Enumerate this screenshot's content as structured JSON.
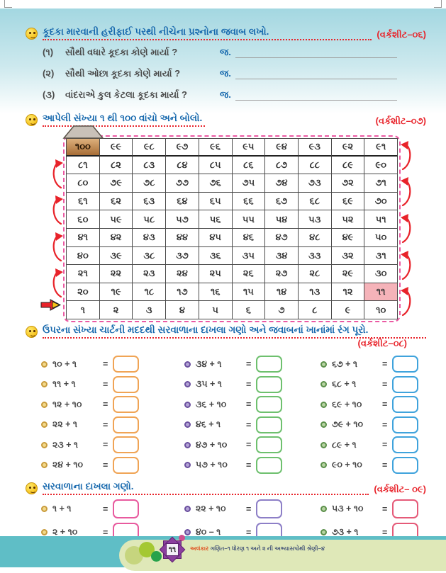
{
  "worksheet6": {
    "heading": "કૂદકા મારવાની હરીફાઈ પરથી નીચેના પ્રશ્નોના જવાબ લખો.",
    "label": "(વર્કશીટ–૦૬)",
    "answer_prefix": "જ.",
    "questions": [
      {
        "num": "(૧)",
        "text": "સૌથી વધારે કૂદકા કોણે માર્યા ?"
      },
      {
        "num": "(૨)",
        "text": "સૌથી ઓછા કૂદકા કોણે માર્યા ?"
      },
      {
        "num": "(૩)",
        "text": "વાંદરાએ કુલ કેટલા કૂદકા માર્યા ?"
      }
    ]
  },
  "worksheet7": {
    "heading": "આપેલી સંખ્યા ૧ થી ૧૦૦ વાંચો અને બોલો.",
    "label": "(વર્કશીટ–૦૭)",
    "start_cell": "૧૦૦",
    "highlight_cell": "૧૧",
    "grid_rows": [
      [
        "૧૦૦",
        "૯૯",
        "૯૮",
        "૯૭",
        "૯૬",
        "૯૫",
        "૯૪",
        "૯૩",
        "૯૨",
        "૯૧"
      ],
      [
        "૮૧",
        "૮૨",
        "૮૩",
        "૮૪",
        "૮૫",
        "૮૬",
        "૮૭",
        "૮૮",
        "૮૯",
        "૯૦"
      ],
      [
        "૮૦",
        "૭૯",
        "૭૮",
        "૭૭",
        "૭૬",
        "૭૫",
        "૭૪",
        "૭૩",
        "૭૨",
        "૭૧"
      ],
      [
        "૬૧",
        "૬૨",
        "૬૩",
        "૬૪",
        "૬૫",
        "૬૬",
        "૬૭",
        "૬૮",
        "૬૯",
        "૭૦"
      ],
      [
        "૬૦",
        "૫૯",
        "૫૮",
        "૫૭",
        "૫૬",
        "૫૫",
        "૫૪",
        "૫૩",
        "૫૨",
        "૫૧"
      ],
      [
        "૪૧",
        "૪૨",
        "૪૩",
        "૪૪",
        "૪૫",
        "૪૬",
        "૪૭",
        "૪૮",
        "૪૯",
        "૫૦"
      ],
      [
        "૪૦",
        "૩૯",
        "૩૮",
        "૩૭",
        "૩૬",
        "૩૫",
        "૩૪",
        "૩૩",
        "૩૨",
        "૩૧"
      ],
      [
        "૨૧",
        "૨૨",
        "૨૩",
        "૨૪",
        "૨૫",
        "૨૬",
        "૨૭",
        "૨૮",
        "૨૯",
        "૩૦"
      ],
      [
        "૨૦",
        "૧૯",
        "૧૮",
        "૧૭",
        "૧૬",
        "૧૫",
        "૧૪",
        "૧૩",
        "૧૨",
        "૧૧"
      ],
      [
        "૧",
        "૨",
        "૩",
        "૪",
        "૫",
        "૬",
        "૭",
        "૮",
        "૯",
        "૧૦"
      ]
    ]
  },
  "worksheet8": {
    "heading": "ઉપરના સંખ્યા ચાર્ટની મદદથી સરવાળાના દાખલા ગણો અને જવાબનાં ખાનાંમાં રંગ પૂરો.",
    "label": "(વર્કશીટ–૦૮)",
    "equals": "=",
    "columns": [
      {
        "box_color": "#f0a455",
        "bullet_ring": "#c89b3c",
        "bullet_fill": "#f3d98a",
        "problems": [
          "૧૦ + ૧",
          "૧૧ + ૧",
          "૧૨ + ૧૦",
          "૨૨ + ૧",
          "૨૩ + ૧",
          "૨૪ + ૧૦"
        ]
      },
      {
        "box_color": "#6ec06e",
        "bullet_ring": "#6a4f9e",
        "bullet_fill": "#b3a3d6",
        "problems": [
          "૩૪ + ૧",
          "૩૫ + ૧",
          "૩૬ + ૧૦",
          "૪૬ + ૧",
          "૪૭ + ૧૦",
          "૫૭ + ૧૦"
        ]
      },
      {
        "box_color": "#3fa3dc",
        "bullet_ring": "#5a8f49",
        "bullet_fill": "#b7d3a2",
        "problems": [
          "૬૭ + ૧",
          "૬૮ + ૧",
          "૬૯ + ૧૦",
          "૭૯ + ૧૦",
          "૮૯ + ૧",
          "૯૦ + ૧૦"
        ]
      }
    ]
  },
  "worksheet9": {
    "heading": "સરવાળાના દાખલા ગણો.",
    "label": "(વર્કશીટ– ૦૯)",
    "equals": "=",
    "columns": [
      {
        "box_color": "#e85a9e",
        "bullet_ring": "#c89b3c",
        "bullet_fill": "#f3d98a",
        "problems": [
          "૧ + ૧",
          "૨ + ૧૦"
        ]
      },
      {
        "box_color": "#8d7fc7",
        "bullet_ring": "#6a4f9e",
        "bullet_fill": "#b3a3d6",
        "problems": [
          "૨૨ + ૧૦",
          "૪૦ – ૧"
        ]
      },
      {
        "box_color": "#e55a78",
        "bullet_ring": "#5a8f49",
        "bullet_fill": "#b7d3a2",
        "problems": [
          "૫૩ + ૧૦",
          "૭૩ + ૧"
        ]
      }
    ]
  },
  "footer": {
    "page_number": "૧૧",
    "series": "અલંકાર",
    "book": "ગણિત–૧ ધોરણ ૧ અને ૨ ની અભ્યાસપોથી શ્રેણી–૪"
  },
  "colors": {
    "heading_blue": "#1668ad",
    "worksheet_red": "#e8232a",
    "grid_dash_pink": "#eb5aa3",
    "highlight_pink": "#f5b3b9",
    "footer_teal": "#5fbec6",
    "footer_olive": "#dfe8b8"
  }
}
